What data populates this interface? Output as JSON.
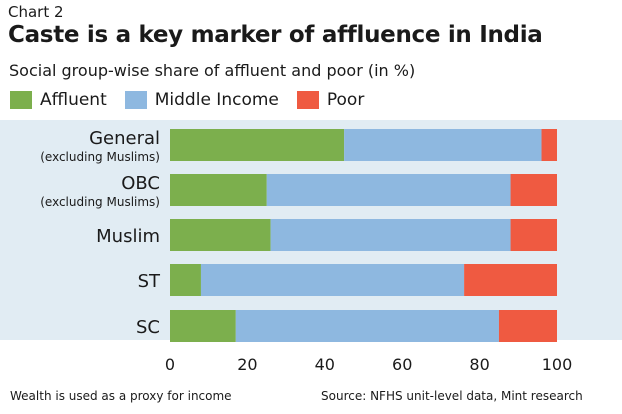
{
  "header": {
    "kicker": "Chart 2",
    "title": "Caste is a key marker of affluence in India",
    "subtitle": "Social group-wise share of affluent and poor (in %)"
  },
  "colors": {
    "affluent": "#7caf4d",
    "middle": "#8eb8e0",
    "poor": "#ef5a41",
    "plot_background": "#e1ecf3"
  },
  "chart_data": {
    "type": "bar",
    "orientation": "horizontal",
    "stacked": true,
    "title": "Caste is a key marker of affluence in India",
    "subtitle": "Social group-wise share of affluent and poor (in %)",
    "categories": [
      {
        "label": "General",
        "sublabel": "(excluding Muslims)"
      },
      {
        "label": "OBC",
        "sublabel": "(excluding Muslims)"
      },
      {
        "label": "Muslim",
        "sublabel": ""
      },
      {
        "label": "ST",
        "sublabel": ""
      },
      {
        "label": "SC",
        "sublabel": ""
      }
    ],
    "series": [
      {
        "name": "Affluent",
        "values": [
          45,
          25,
          26,
          8,
          17
        ]
      },
      {
        "name": "Middle Income",
        "values": [
          51,
          63,
          62,
          68,
          68
        ]
      },
      {
        "name": "Poor",
        "values": [
          4,
          12,
          12,
          24,
          15
        ]
      }
    ],
    "xlim": [
      0,
      100
    ],
    "xticks": [
      "0",
      "20",
      "40",
      "60",
      "80",
      "100"
    ],
    "xlabel": "",
    "ylabel": "",
    "grid": false,
    "legend": "top-left"
  },
  "footer": {
    "note": "Wealth is used as a proxy for income",
    "source": "Source: NFHS unit-level data, Mint research"
  }
}
